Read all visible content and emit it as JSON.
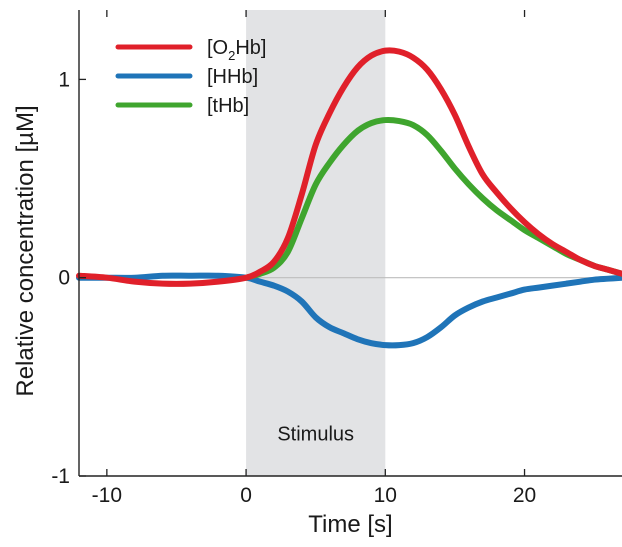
{
  "chart_data": {
    "type": "line",
    "title": "",
    "xlabel": "Time [s]",
    "ylabel": "Relative concentration [µM]",
    "xlim": [
      -12,
      27
    ],
    "ylim": [
      -1,
      1.35
    ],
    "x_ticks": [
      -10,
      0,
      10,
      20
    ],
    "x_tick_labels": [
      "-10",
      "0",
      "10",
      "20"
    ],
    "y_ticks": [
      -1,
      0,
      1
    ],
    "y_tick_labels": [
      "-1",
      "0",
      "1"
    ],
    "grid": false,
    "zero_line": true,
    "legend_position": "top-left",
    "stimulus": {
      "label": "Stimulus",
      "start": 0,
      "end": 10,
      "color": "#e2e3e5"
    },
    "series": [
      {
        "name": "[O2Hb]",
        "name_base": "[O",
        "name_sub": "2",
        "name_tail": "Hb]",
        "color": "#e0202a",
        "x": [
          -12,
          -10,
          -8,
          -6,
          -4,
          -2,
          0,
          1,
          2,
          3,
          4,
          5,
          6,
          7,
          8,
          9,
          10,
          11,
          12,
          13,
          14,
          15,
          16,
          17,
          18,
          19,
          20,
          21,
          22,
          23,
          24,
          25,
          26,
          27
        ],
        "y": [
          0.01,
          0.0,
          -0.02,
          -0.03,
          -0.03,
          -0.02,
          0.0,
          0.03,
          0.08,
          0.2,
          0.42,
          0.67,
          0.83,
          0.96,
          1.06,
          1.12,
          1.145,
          1.14,
          1.11,
          1.05,
          0.95,
          0.82,
          0.66,
          0.52,
          0.43,
          0.35,
          0.28,
          0.22,
          0.17,
          0.13,
          0.09,
          0.06,
          0.04,
          0.02
        ]
      },
      {
        "name": "[HHb]",
        "color": "#1f74b8",
        "x": [
          -12,
          -10,
          -8,
          -6,
          -4,
          -2,
          0,
          1,
          2,
          3,
          4,
          5,
          6,
          7,
          8,
          9,
          10,
          11,
          12,
          13,
          14,
          15,
          16,
          17,
          18,
          19,
          20,
          21,
          22,
          23,
          24,
          25,
          26,
          27
        ],
        "y": [
          0.0,
          0.0,
          0.0,
          0.01,
          0.01,
          0.01,
          0.0,
          -0.02,
          -0.04,
          -0.07,
          -0.12,
          -0.2,
          -0.25,
          -0.28,
          -0.31,
          -0.33,
          -0.34,
          -0.34,
          -0.33,
          -0.3,
          -0.25,
          -0.19,
          -0.15,
          -0.12,
          -0.1,
          -0.08,
          -0.06,
          -0.05,
          -0.04,
          -0.03,
          -0.02,
          -0.01,
          -0.005,
          0.0
        ]
      },
      {
        "name": "[tHb]",
        "color": "#3fa52e",
        "x": [
          0,
          1,
          2,
          3,
          4,
          5,
          6,
          7,
          8,
          9,
          10,
          11,
          12,
          13,
          14,
          15,
          16,
          17,
          18,
          19,
          20,
          21,
          22,
          23,
          24,
          25,
          26,
          27
        ],
        "y": [
          0.0,
          0.02,
          0.05,
          0.13,
          0.3,
          0.47,
          0.58,
          0.67,
          0.74,
          0.78,
          0.795,
          0.79,
          0.77,
          0.72,
          0.64,
          0.55,
          0.47,
          0.4,
          0.34,
          0.29,
          0.24,
          0.2,
          0.16,
          0.12,
          0.09,
          0.06,
          0.04,
          0.02
        ]
      }
    ]
  }
}
